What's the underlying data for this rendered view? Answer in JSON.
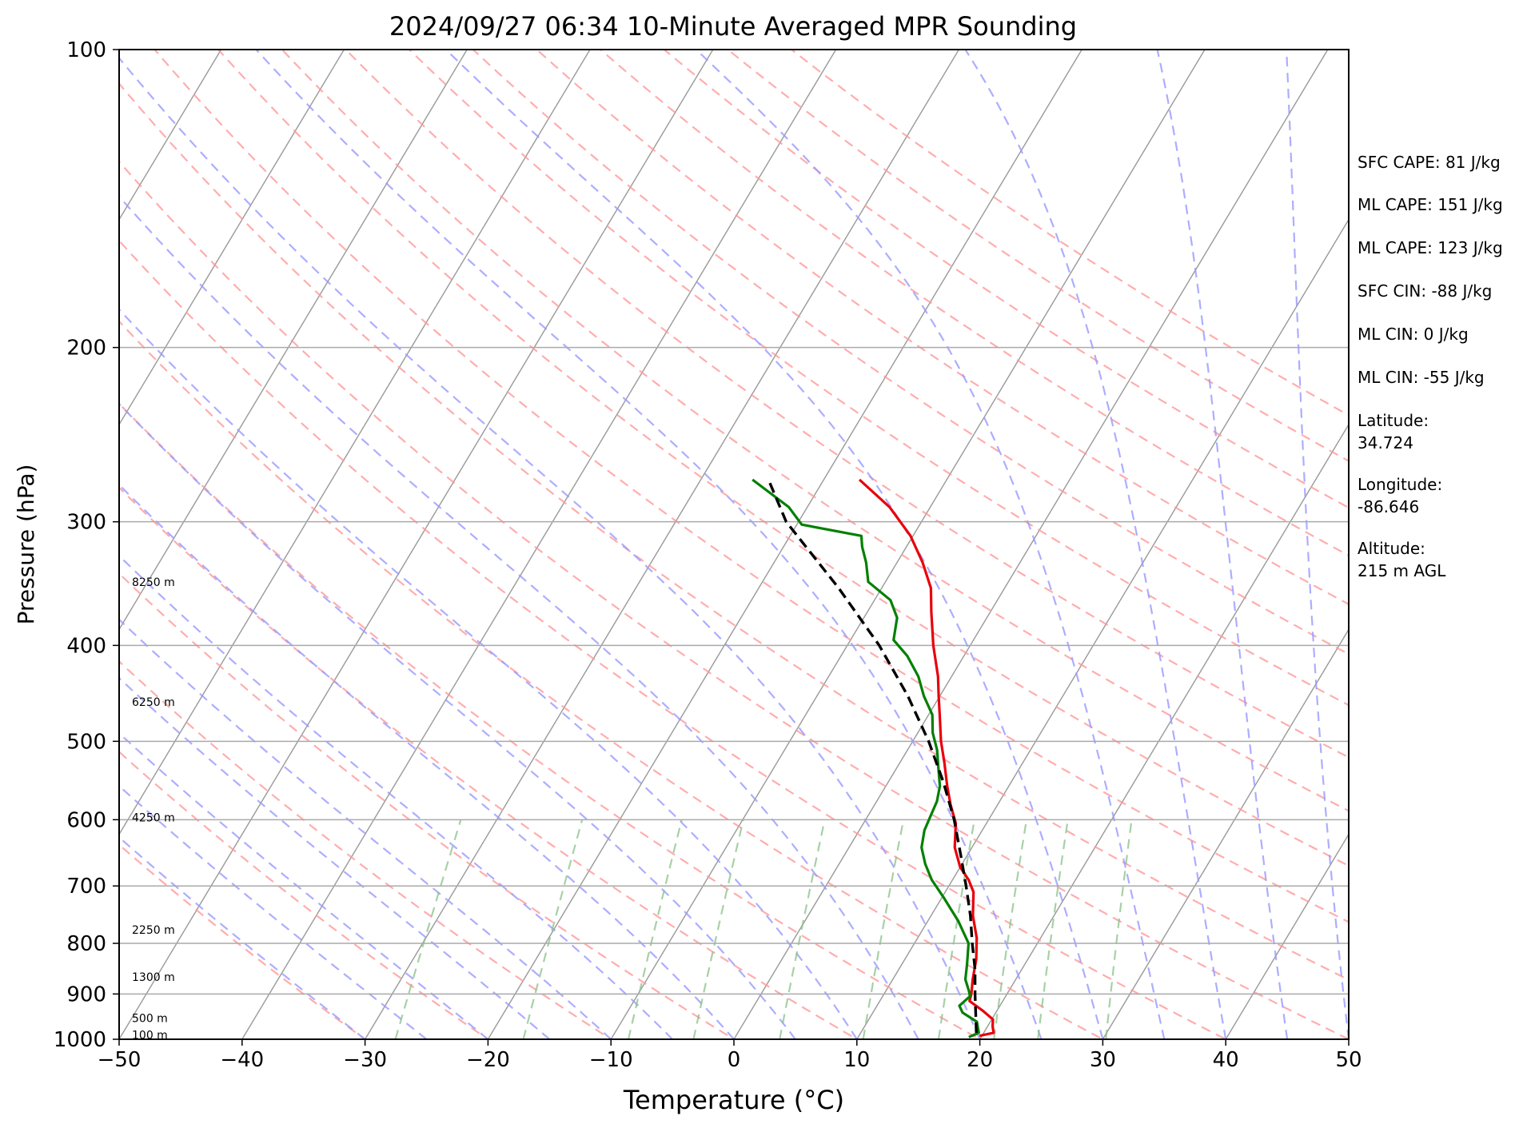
{
  "chart_data": {
    "type": "line",
    "title": "2024/09/27 06:34 10-Minute Averaged MPR Sounding",
    "xlabel": "Temperature (°C)",
    "ylabel": "Pressure (hPa)",
    "xlim": [
      -50,
      50
    ],
    "ylim": [
      1000,
      100
    ],
    "y_scale": "log",
    "skew": "skew-T",
    "grid": true,
    "x_ticks": [
      "−50",
      "−40",
      "−30",
      "−20",
      "−10",
      "0",
      "10",
      "20",
      "30",
      "40",
      "50"
    ],
    "y_ticks": [
      "100",
      "200",
      "300",
      "400",
      "500",
      "600",
      "700",
      "800",
      "900",
      "1000"
    ],
    "height_labels": [
      {
        "text": "100 m",
        "p": 990
      },
      {
        "text": "500 m",
        "p": 952
      },
      {
        "text": "1300 m",
        "p": 865
      },
      {
        "text": "2250 m",
        "p": 775
      },
      {
        "text": "4250 m",
        "p": 597
      },
      {
        "text": "6250 m",
        "p": 456
      },
      {
        "text": "8250 m",
        "p": 345
      }
    ],
    "series": [
      {
        "key": "temperature",
        "color": "#e8000b",
        "style": "solid",
        "points": [
          [
            992,
            19.8
          ],
          [
            985,
            20.8
          ],
          [
            970,
            20.4
          ],
          [
            955,
            20.1
          ],
          [
            935,
            18.8
          ],
          [
            915,
            17.3
          ],
          [
            900,
            17.1
          ],
          [
            870,
            16.5
          ],
          [
            830,
            15.8
          ],
          [
            790,
            14.8
          ],
          [
            750,
            13.4
          ],
          [
            710,
            12.3
          ],
          [
            690,
            11.3
          ],
          [
            670,
            10.0
          ],
          [
            640,
            8.6
          ],
          [
            605,
            7.5
          ],
          [
            580,
            6.2
          ],
          [
            555,
            5.0
          ],
          [
            525,
            3.6
          ],
          [
            500,
            2.3
          ],
          [
            470,
            0.9
          ],
          [
            450,
            -0.1
          ],
          [
            430,
            -1.1
          ],
          [
            400,
            -3.0
          ],
          [
            370,
            -4.8
          ],
          [
            350,
            -6.0
          ],
          [
            330,
            -7.9
          ],
          [
            310,
            -10.2
          ],
          [
            290,
            -13.3
          ],
          [
            272,
            -17.1
          ]
        ]
      },
      {
        "key": "dewpoint",
        "color": "#008000",
        "style": "solid",
        "points": [
          [
            995,
            19.0
          ],
          [
            985,
            19.6
          ],
          [
            960,
            18.9
          ],
          [
            940,
            17.3
          ],
          [
            925,
            16.7
          ],
          [
            905,
            17.1
          ],
          [
            895,
            16.8
          ],
          [
            870,
            15.9
          ],
          [
            840,
            15.3
          ],
          [
            800,
            14.4
          ],
          [
            760,
            12.5
          ],
          [
            720,
            10.2
          ],
          [
            690,
            8.3
          ],
          [
            665,
            7.0
          ],
          [
            640,
            5.9
          ],
          [
            615,
            5.3
          ],
          [
            595,
            5.1
          ],
          [
            575,
            4.9
          ],
          [
            555,
            4.4
          ],
          [
            530,
            3.3
          ],
          [
            510,
            2.4
          ],
          [
            490,
            1.2
          ],
          [
            470,
            0.3
          ],
          [
            450,
            -1.3
          ],
          [
            430,
            -2.7
          ],
          [
            410,
            -4.6
          ],
          [
            395,
            -6.5
          ],
          [
            375,
            -7.3
          ],
          [
            360,
            -8.7
          ],
          [
            345,
            -11.4
          ],
          [
            330,
            -12.5
          ],
          [
            318,
            -13.6
          ],
          [
            310,
            -14.2
          ],
          [
            302,
            -19.6
          ],
          [
            290,
            -21.5
          ],
          [
            272,
            -25.8
          ]
        ]
      },
      {
        "key": "parcel-path",
        "color": "#000000",
        "style": "dashed",
        "points": [
          [
            985,
            19.4
          ],
          [
            950,
            18.6
          ],
          [
            900,
            17.4
          ],
          [
            850,
            16.2
          ],
          [
            800,
            14.7
          ],
          [
            750,
            13.2
          ],
          [
            700,
            11.4
          ],
          [
            650,
            9.4
          ],
          [
            600,
            7.2
          ],
          [
            550,
            4.5
          ],
          [
            500,
            1.3
          ],
          [
            450,
            -2.6
          ],
          [
            400,
            -7.4
          ],
          [
            350,
            -13.5
          ],
          [
            300,
            -21.0
          ],
          [
            272,
            -24.5
          ]
        ]
      }
    ]
  },
  "annotations": [
    "SFC CAPE: 81 J/kg",
    "ML CAPE: 151 J/kg",
    "ML CAPE: 123 J/kg",
    "SFC CIN: -88 J/kg",
    "ML CIN: 0 J/kg",
    "ML CIN: -55 J/kg",
    "Latitude:\n34.724",
    "Longitude:\n-86.646",
    "Altitude:\n215 m AGL"
  ],
  "colors": {
    "temperature": "#e8000b",
    "dewpoint": "#008000",
    "parcel": "#000000",
    "dry_adiabats": "#ff9999",
    "moist_adiabats": "#9999ff",
    "mixing_ratio": "#88c288",
    "isotherms": "#999999",
    "isobars": "#aaaaaa"
  }
}
